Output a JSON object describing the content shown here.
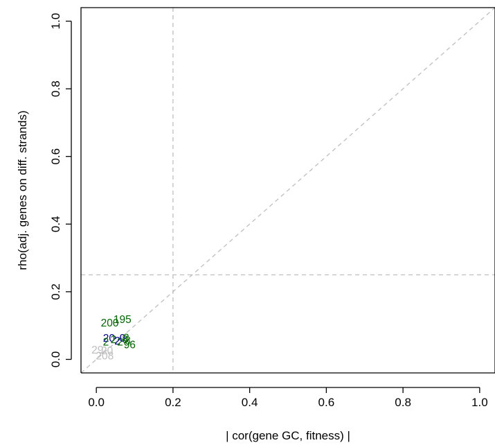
{
  "chart_data": {
    "type": "scatter",
    "title": "",
    "xlabel": "| cor(gene GC, fitness) |",
    "ylabel": "rho(adj. genes on diff. strands)",
    "xlim": [
      -0.04,
      1.04
    ],
    "ylim": [
      -0.04,
      1.04
    ],
    "x_ticks": [
      "0.0",
      "0.2",
      "0.4",
      "0.6",
      "0.8",
      "1.0"
    ],
    "y_ticks": [
      "0.0",
      "0.2",
      "0.4",
      "0.6",
      "0.8",
      "1.0"
    ],
    "reference_lines": [
      {
        "type": "vertical",
        "x": 0.2,
        "color": "#bebebe",
        "style": "dashed"
      },
      {
        "type": "horizontal",
        "y": 0.25,
        "color": "#bebebe",
        "style": "dashed"
      },
      {
        "type": "diagonal",
        "slope": 1,
        "intercept": 0,
        "color": "#bebebe",
        "style": "dashed"
      }
    ],
    "grid": false,
    "points": [
      {
        "label": "200",
        "x": 0.035,
        "y": 0.108,
        "color": "#006400"
      },
      {
        "label": "195",
        "x": 0.068,
        "y": 0.118,
        "color": "#006400"
      },
      {
        "label": "20",
        "x": 0.033,
        "y": 0.062,
        "color": "#00008b"
      },
      {
        "label": "2",
        "x": 0.025,
        "y": 0.051,
        "color": "#006400"
      },
      {
        "label": "2",
        "x": 0.045,
        "y": 0.058,
        "color": "#006400"
      },
      {
        "label": "2",
        "x": 0.055,
        "y": 0.054,
        "color": "#00008b"
      },
      {
        "label": "2",
        "x": 0.062,
        "y": 0.051,
        "color": "#006400"
      },
      {
        "label": "0",
        "x": 0.068,
        "y": 0.062,
        "color": "#00008b"
      },
      {
        "label": "6",
        "x": 0.075,
        "y": 0.058,
        "color": "#006400"
      },
      {
        "label": "3",
        "x": 0.078,
        "y": 0.063,
        "color": "#006400"
      },
      {
        "label": "8",
        "x": 0.082,
        "y": 0.055,
        "color": "#006400"
      },
      {
        "label": "96",
        "x": 0.087,
        "y": 0.043,
        "color": "#006400"
      },
      {
        "label": "29",
        "x": 0.003,
        "y": 0.028,
        "color": "#bebebe"
      },
      {
        "label": "20",
        "x": 0.028,
        "y": 0.026,
        "color": "#bebebe"
      },
      {
        "label": "208",
        "x": 0.022,
        "y": 0.01,
        "color": "#bebebe"
      }
    ]
  }
}
